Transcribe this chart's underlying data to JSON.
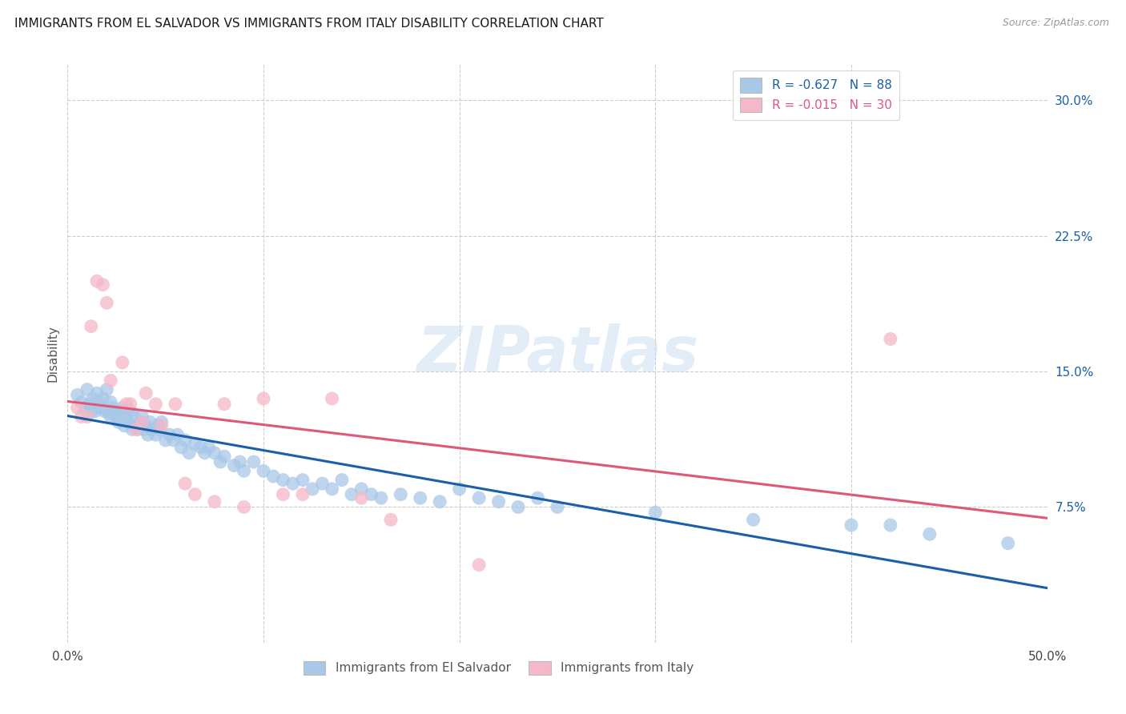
{
  "title": "IMMIGRANTS FROM EL SALVADOR VS IMMIGRANTS FROM ITALY DISABILITY CORRELATION CHART",
  "source": "Source: ZipAtlas.com",
  "ylabel": "Disability",
  "xlim": [
    0.0,
    0.5
  ],
  "ylim": [
    0.0,
    0.32
  ],
  "ytick_values": [
    0.075,
    0.15,
    0.225,
    0.3
  ],
  "ytick_labels": [
    "7.5%",
    "15.0%",
    "22.5%",
    "30.0%"
  ],
  "legend_label1": "R = -0.627   N = 88",
  "legend_label2": "R = -0.015   N = 30",
  "legend_color1": "#a8c8e8",
  "legend_color2": "#f4b8c8",
  "line_color1": "#1a5fa8",
  "line_color2": "#e05878",
  "watermark": "ZIPatlas",
  "background_color": "#ffffff",
  "grid_color": "#cccccc",
  "blue_scatter_x": [
    0.005,
    0.007,
    0.009,
    0.01,
    0.011,
    0.012,
    0.013,
    0.014,
    0.015,
    0.016,
    0.017,
    0.018,
    0.019,
    0.02,
    0.021,
    0.022,
    0.022,
    0.023,
    0.024,
    0.025,
    0.026,
    0.027,
    0.028,
    0.029,
    0.03,
    0.031,
    0.032,
    0.033,
    0.034,
    0.035,
    0.036,
    0.037,
    0.038,
    0.039,
    0.04,
    0.041,
    0.042,
    0.043,
    0.045,
    0.046,
    0.047,
    0.048,
    0.05,
    0.052,
    0.054,
    0.056,
    0.058,
    0.06,
    0.062,
    0.065,
    0.068,
    0.07,
    0.072,
    0.075,
    0.078,
    0.08,
    0.085,
    0.088,
    0.09,
    0.095,
    0.1,
    0.105,
    0.11,
    0.115,
    0.12,
    0.125,
    0.13,
    0.135,
    0.14,
    0.145,
    0.15,
    0.155,
    0.16,
    0.17,
    0.18,
    0.19,
    0.2,
    0.21,
    0.22,
    0.23,
    0.24,
    0.25,
    0.3,
    0.35,
    0.4,
    0.42,
    0.44,
    0.48
  ],
  "blue_scatter_y": [
    0.137,
    0.133,
    0.13,
    0.14,
    0.132,
    0.128,
    0.135,
    0.128,
    0.138,
    0.133,
    0.13,
    0.135,
    0.128,
    0.14,
    0.127,
    0.133,
    0.125,
    0.13,
    0.128,
    0.125,
    0.122,
    0.128,
    0.13,
    0.12,
    0.125,
    0.122,
    0.128,
    0.118,
    0.125,
    0.12,
    0.118,
    0.122,
    0.125,
    0.118,
    0.12,
    0.115,
    0.122,
    0.118,
    0.115,
    0.12,
    0.118,
    0.122,
    0.112,
    0.115,
    0.112,
    0.115,
    0.108,
    0.112,
    0.105,
    0.11,
    0.108,
    0.105,
    0.108,
    0.105,
    0.1,
    0.103,
    0.098,
    0.1,
    0.095,
    0.1,
    0.095,
    0.092,
    0.09,
    0.088,
    0.09,
    0.085,
    0.088,
    0.085,
    0.09,
    0.082,
    0.085,
    0.082,
    0.08,
    0.082,
    0.08,
    0.078,
    0.085,
    0.08,
    0.078,
    0.075,
    0.08,
    0.075,
    0.072,
    0.068,
    0.065,
    0.065,
    0.06,
    0.055
  ],
  "pink_scatter_x": [
    0.005,
    0.007,
    0.01,
    0.012,
    0.015,
    0.018,
    0.02,
    0.022,
    0.028,
    0.03,
    0.032,
    0.035,
    0.038,
    0.04,
    0.045,
    0.048,
    0.055,
    0.06,
    0.065,
    0.075,
    0.08,
    0.09,
    0.1,
    0.11,
    0.12,
    0.135,
    0.15,
    0.165,
    0.21,
    0.42
  ],
  "pink_scatter_y": [
    0.13,
    0.125,
    0.125,
    0.175,
    0.2,
    0.198,
    0.188,
    0.145,
    0.155,
    0.132,
    0.132,
    0.118,
    0.122,
    0.138,
    0.132,
    0.12,
    0.132,
    0.088,
    0.082,
    0.078,
    0.132,
    0.075,
    0.135,
    0.082,
    0.082,
    0.135,
    0.08,
    0.068,
    0.043,
    0.168
  ]
}
